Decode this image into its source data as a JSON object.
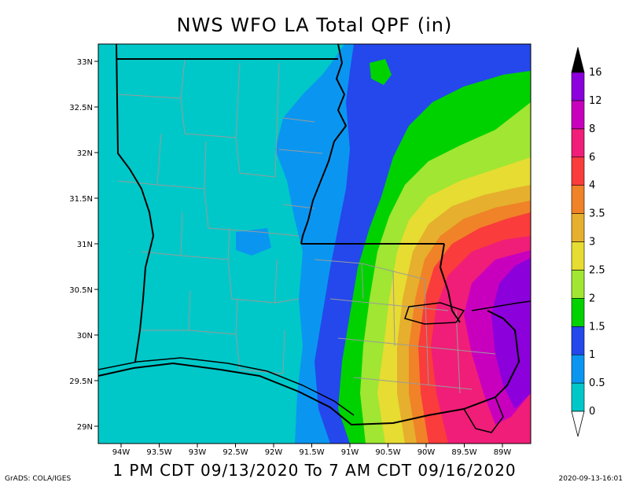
{
  "title": "NWS WFO LA Total QPF (in)",
  "subtitle": "1 PM CDT 09/13/2020 To 7 AM CDT 09/16/2020",
  "credit": "GrADS: COLA/IGES",
  "timestamp": "2020-09-13-16:01",
  "lat_labels": [
    "33N",
    "32.5N",
    "32N",
    "31.5N",
    "31N",
    "30.5N",
    "30N",
    "29.5N",
    "29N"
  ],
  "lon_labels": [
    "94W",
    "93.5W",
    "93W",
    "92.5W",
    "92W",
    "91.5W",
    "91W",
    "90.5W",
    "90W",
    "89.5W",
    "89W"
  ],
  "colorbar": {
    "labels": [
      "0",
      "0.5",
      "1",
      "1.5",
      "2",
      "2.5",
      "3",
      "3.5",
      "4",
      "6",
      "8",
      "12",
      "16"
    ],
    "colors": [
      "#00c8c8",
      "#0a96f0",
      "#2448ec",
      "#00d200",
      "#a0e632",
      "#e6dc32",
      "#e6af2d",
      "#f08228",
      "#fa3c3c",
      "#f01e78",
      "#c800be",
      "#8c00dc",
      "#000000"
    ]
  },
  "colors": {
    "ocean_fill": "#00c8c8",
    "state_border": "#000000",
    "parish_border": "#9a9a9a"
  }
}
